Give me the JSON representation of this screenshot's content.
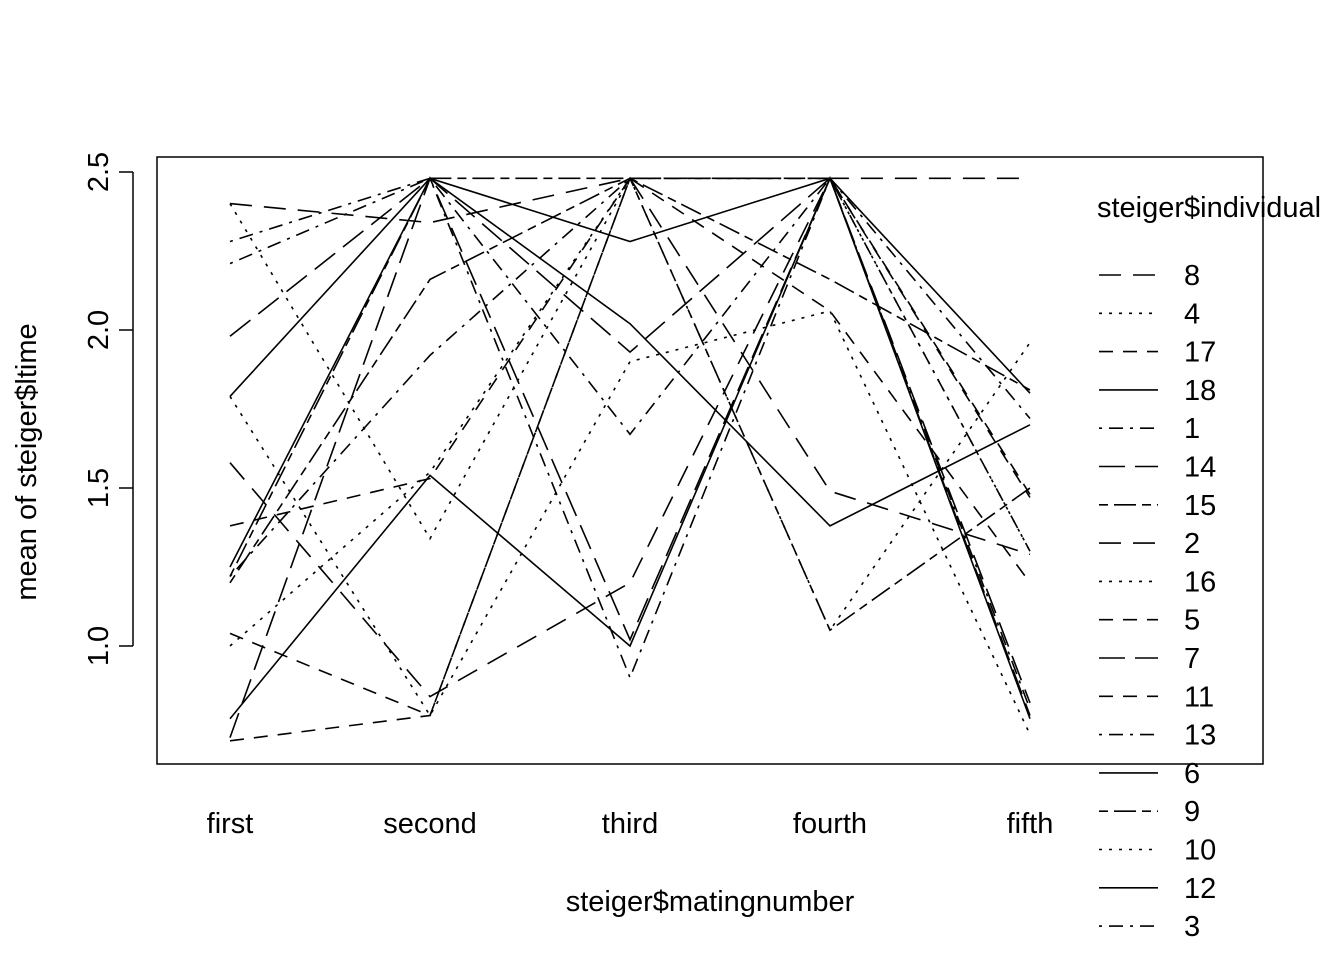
{
  "chart_data": {
    "type": "line",
    "title": "",
    "xlabel": "steiger$matingnumber",
    "ylabel": "mean of  steiger$ltime",
    "categories": [
      "first",
      "second",
      "third",
      "fourth",
      "fifth"
    ],
    "ylim": [
      0.69,
      2.55
    ],
    "yticks": [
      "1.0",
      "1.5",
      "2.0",
      "2.5"
    ],
    "grid": false,
    "legend_title": "steiger$individual",
    "legend_position": "right",
    "series": [
      {
        "name": "8",
        "dash": "long",
        "values": [
          1.58,
          0.84,
          1.2,
          2.48,
          2.48
        ]
      },
      {
        "name": "4",
        "dash": "dotted",
        "values": [
          2.4,
          1.34,
          2.48,
          2.48,
          1.3
        ]
      },
      {
        "name": "17",
        "dash": "dashed",
        "values": [
          0.7,
          0.78,
          2.48,
          2.48,
          1.47
        ]
      },
      {
        "name": "18",
        "dash": "solid",
        "values": [
          1.79,
          2.48,
          2.28,
          2.48,
          1.8
        ]
      },
      {
        "name": "1",
        "dash": "dotdash",
        "values": [
          2.21,
          2.48,
          1.67,
          2.48,
          1.3
        ]
      },
      {
        "name": "14",
        "dash": "longdash",
        "values": [
          1.98,
          2.48,
          1.93,
          2.48,
          0.82
        ]
      },
      {
        "name": "15",
        "dash": "twodash",
        "values": [
          1.22,
          2.48,
          2.48,
          2.16,
          1.81
        ]
      },
      {
        "name": "2",
        "dash": "long",
        "values": [
          2.4,
          2.34,
          2.48,
          1.49,
          1.29
        ]
      },
      {
        "name": "16",
        "dash": "dotted",
        "values": [
          1.79,
          0.78,
          1.9,
          2.06,
          0.72
        ]
      },
      {
        "name": "5",
        "dash": "dashed",
        "values": [
          1.04,
          0.78,
          2.48,
          2.06,
          1.2
        ]
      },
      {
        "name": "7",
        "dash": "longdash",
        "values": [
          0.71,
          2.48,
          1.02,
          2.48,
          0.78
        ]
      },
      {
        "name": "11",
        "dash": "dashed",
        "values": [
          1.38,
          1.53,
          2.48,
          2.48,
          1.48
        ]
      },
      {
        "name": "13",
        "dash": "dotdash",
        "values": [
          1.22,
          1.92,
          2.48,
          2.48,
          0.8
        ]
      },
      {
        "name": "6",
        "dash": "solid",
        "values": [
          0.77,
          1.54,
          1.0,
          2.48,
          0.77
        ]
      },
      {
        "name": "9",
        "dash": "twodash",
        "values": [
          1.2,
          2.16,
          2.48,
          1.05,
          1.5
        ]
      },
      {
        "name": "10",
        "dash": "dotted",
        "values": [
          1.0,
          1.55,
          2.48,
          1.05,
          1.96
        ]
      },
      {
        "name": "12",
        "dash": "solid",
        "values": [
          1.25,
          2.48,
          2.02,
          1.38,
          1.7
        ]
      },
      {
        "name": "3",
        "dash": "dotdash",
        "values": [
          2.28,
          2.48,
          0.9,
          2.48,
          1.72
        ]
      }
    ]
  }
}
